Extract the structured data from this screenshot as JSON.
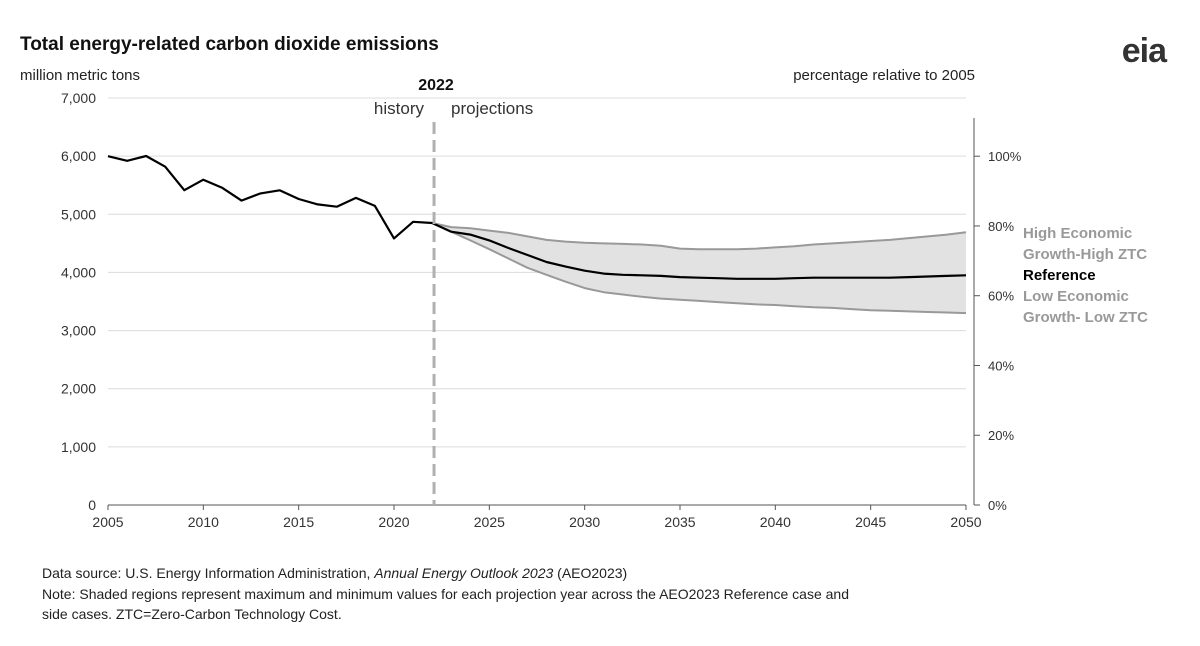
{
  "logo": "eia",
  "footer": {
    "source_prefix": "Data source: U.S. Energy Information Administration, ",
    "source_italic": "Annual Energy Outlook 2023",
    "source_suffix": " (AEO2023)",
    "note_line1": "Note: Shaded regions represent maximum and minimum values for each projection year across the AEO2023 Reference case and",
    "note_line2": "side cases. ZTC=Zero-Carbon Technology Cost."
  },
  "chart_data": {
    "type": "line",
    "title": "Total energy-related carbon dioxide emissions",
    "ylabel": "million metric tons",
    "y2label": "percentage relative to 2005",
    "xlim": [
      2005,
      2050
    ],
    "ylim": [
      0,
      7000
    ],
    "x_ticks": [
      2005,
      2010,
      2015,
      2020,
      2025,
      2030,
      2035,
      2040,
      2045,
      2050
    ],
    "y_ticks": [
      0,
      1000,
      2000,
      3000,
      4000,
      5000,
      6000,
      7000
    ],
    "y_tick_labels": [
      "0",
      "1,000",
      "2,000",
      "3,000",
      "4,000",
      "5,000",
      "6,000",
      "7,000"
    ],
    "y2_ticks": [
      {
        "value": 0,
        "label": "0%"
      },
      {
        "value": 20,
        "label": "20%"
      },
      {
        "value": 40,
        "label": "40%"
      },
      {
        "value": 60,
        "label": "60%"
      },
      {
        "value": 80,
        "label": "80%"
      },
      {
        "value": 100,
        "label": "100%"
      }
    ],
    "y2_base_value": 5999,
    "divider": {
      "x": 2022.1,
      "label": "2022",
      "left_label": "history",
      "right_label": "projections"
    },
    "grid": true,
    "series": [
      {
        "name": "Reference",
        "color": "#000000",
        "x": [
          2005,
          2006,
          2007,
          2008,
          2009,
          2010,
          2011,
          2012,
          2013,
          2014,
          2015,
          2016,
          2017,
          2018,
          2019,
          2020,
          2021,
          2022,
          2023,
          2024,
          2025,
          2026,
          2027,
          2028,
          2029,
          2030,
          2031,
          2032,
          2033,
          2034,
          2035,
          2036,
          2037,
          2038,
          2039,
          2040,
          2041,
          2042,
          2043,
          2044,
          2045,
          2046,
          2047,
          2048,
          2049,
          2050
        ],
        "values": [
          5999,
          5920,
          6003,
          5819,
          5414,
          5594,
          5453,
          5236,
          5359,
          5412,
          5263,
          5170,
          5131,
          5282,
          5144,
          4586,
          4870,
          4850,
          4700,
          4650,
          4550,
          4420,
          4300,
          4180,
          4100,
          4030,
          3980,
          3960,
          3950,
          3940,
          3920,
          3910,
          3900,
          3890,
          3890,
          3890,
          3900,
          3910,
          3910,
          3910,
          3910,
          3910,
          3920,
          3930,
          3940,
          3950
        ]
      },
      {
        "name": "High Economic Growth-High ZTC",
        "color": "#999999",
        "x": [
          2022,
          2023,
          2024,
          2025,
          2026,
          2027,
          2028,
          2029,
          2030,
          2031,
          2032,
          2033,
          2034,
          2035,
          2036,
          2037,
          2038,
          2039,
          2040,
          2041,
          2042,
          2043,
          2044,
          2045,
          2046,
          2047,
          2048,
          2049,
          2050
        ],
        "values": [
          4850,
          4780,
          4760,
          4720,
          4680,
          4620,
          4560,
          4530,
          4510,
          4500,
          4490,
          4480,
          4460,
          4410,
          4400,
          4400,
          4400,
          4410,
          4430,
          4450,
          4480,
          4500,
          4520,
          4540,
          4560,
          4590,
          4620,
          4650,
          4690
        ]
      },
      {
        "name": "Low Economic Growth- Low ZTC",
        "color": "#999999",
        "x": [
          2022,
          2023,
          2024,
          2025,
          2026,
          2027,
          2028,
          2029,
          2030,
          2031,
          2032,
          2033,
          2034,
          2035,
          2036,
          2037,
          2038,
          2039,
          2040,
          2041,
          2042,
          2043,
          2044,
          2045,
          2046,
          2047,
          2048,
          2049,
          2050
        ],
        "values": [
          4850,
          4700,
          4550,
          4400,
          4240,
          4080,
          3960,
          3840,
          3730,
          3660,
          3620,
          3580,
          3550,
          3530,
          3510,
          3490,
          3470,
          3450,
          3440,
          3420,
          3400,
          3390,
          3370,
          3350,
          3340,
          3330,
          3320,
          3310,
          3300
        ]
      }
    ],
    "band": {
      "between": [
        "Low Economic Growth- Low ZTC",
        "High Economic Growth-High ZTC"
      ],
      "color": "#e2e2e2"
    },
    "legend": [
      {
        "line1": "High Economic",
        "line2": "Growth-High ZTC",
        "color": "#999999"
      },
      {
        "line1": "Reference",
        "line2": "",
        "color": "#000000"
      },
      {
        "line1": "Low Economic",
        "line2": "Growth- Low ZTC",
        "color": "#999999"
      }
    ],
    "legend_position": "right"
  }
}
